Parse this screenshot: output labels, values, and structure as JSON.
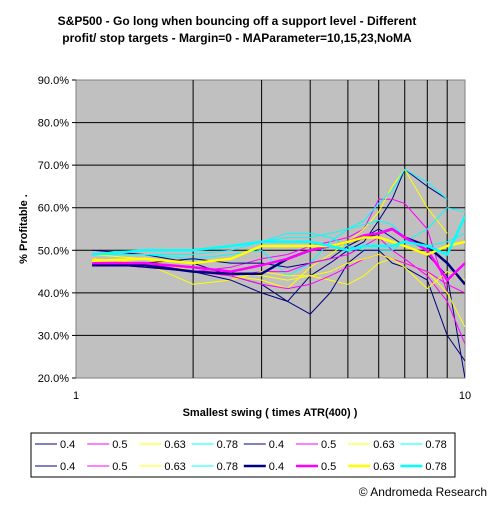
{
  "chart_data": {
    "type": "line",
    "title": [
      "S&P500 - Go long when bouncing off a support level - Different",
      "profit/ stop targets - Margin=0 - MAParameter=10,15,23,NoMA"
    ],
    "xlabel": "Smallest swing ( times ATR(400) )",
    "ylabel": "% Profitable .",
    "x_scale": "log",
    "xlim": [
      1,
      10
    ],
    "x_tick_labels": [
      "1",
      "10"
    ],
    "ylim": [
      20,
      90
    ],
    "y_tick_labels": [
      "20.0%",
      "30.0%",
      "40.0%",
      "50.0%",
      "60.0%",
      "70.0%",
      "80.0%",
      "90.0%"
    ],
    "grid": "vertical",
    "x": [
      1.1,
      1.5,
      2,
      2.5,
      3,
      3.5,
      4,
      4.5,
      5,
      5.5,
      6,
      6.5,
      7,
      8,
      9,
      10
    ],
    "series": [
      {
        "name": "0.4",
        "color": "#000080",
        "width": 1,
        "values": [
          50,
          49,
          47,
          44,
          42,
          38,
          44,
          47,
          50,
          52,
          57,
          62,
          69,
          65,
          62,
          null
        ]
      },
      {
        "name": "0.5",
        "color": "#ff00ff",
        "width": 1,
        "values": [
          48,
          47,
          45,
          46,
          48,
          49,
          51,
          52,
          53,
          55,
          62,
          62,
          61,
          55,
          40,
          null
        ]
      },
      {
        "name": "0.63",
        "color": "#ffff00",
        "width": 1,
        "values": [
          49,
          48,
          45,
          44,
          43,
          41,
          46,
          49,
          52,
          55,
          59,
          65,
          69,
          60,
          54,
          null
        ]
      },
      {
        "name": "0.78",
        "color": "#00ffff",
        "width": 1,
        "values": [
          49,
          49,
          48,
          49,
          50,
          44,
          47,
          52,
          55,
          57,
          61,
          64,
          69,
          66,
          62,
          null
        ]
      },
      {
        "name": "0.4",
        "color": "#000080",
        "width": 1,
        "values": [
          47,
          47,
          48,
          47,
          47,
          46,
          47,
          48,
          51,
          53,
          55,
          53,
          51,
          49,
          44,
          20
        ]
      },
      {
        "name": "0.5",
        "color": "#ff00ff",
        "width": 1,
        "values": [
          47,
          46,
          45,
          44,
          45,
          45,
          47,
          48,
          49,
          51,
          53,
          50,
          48,
          44,
          38,
          28
        ]
      },
      {
        "name": "0.63",
        "color": "#ffff00",
        "width": 1,
        "values": [
          48,
          47,
          42,
          43,
          45,
          44,
          44,
          43,
          42,
          44,
          47,
          48,
          47,
          45,
          40,
          32
        ]
      },
      {
        "name": "0.78",
        "color": "#00ffff",
        "width": 1,
        "values": [
          49,
          49,
          49,
          50,
          52,
          54,
          54,
          53,
          51,
          50,
          50,
          50,
          52,
          55,
          60,
          59
        ]
      },
      {
        "name": "0.4",
        "color": "#000080",
        "width": 1,
        "values": [
          47,
          46,
          45,
          43,
          40,
          38,
          35,
          40,
          47,
          50,
          50,
          47,
          46,
          43,
          30,
          24
        ]
      },
      {
        "name": "0.5",
        "color": "#ff00ff",
        "width": 1,
        "values": [
          48,
          47,
          45,
          44,
          42,
          41,
          42,
          44,
          46,
          48,
          49,
          48,
          47,
          45,
          42,
          40
        ]
      },
      {
        "name": "0.63",
        "color": "#ffff00",
        "width": 1,
        "values": [
          48,
          47,
          46,
          45,
          44,
          43,
          44,
          45,
          47,
          48,
          49,
          48,
          46,
          41,
          45,
          43
        ]
      },
      {
        "name": "0.78",
        "color": "#00ffff",
        "width": 1,
        "values": [
          49,
          50,
          50,
          51,
          52,
          53,
          53,
          54,
          55,
          56,
          57,
          56,
          53,
          51,
          52,
          54
        ]
      },
      {
        "name": "0.4",
        "color": "#000080",
        "width": 2.5,
        "values": [
          46.5,
          46.5,
          45,
          44.5,
          44.5,
          48,
          50,
          51,
          52,
          53,
          54,
          55,
          53,
          51,
          47,
          42
        ]
      },
      {
        "name": "0.5",
        "color": "#ff00ff",
        "width": 2.5,
        "values": [
          47,
          47,
          46,
          45,
          46.5,
          48,
          50,
          51,
          52,
          53.5,
          54,
          55,
          53,
          50,
          43,
          47
        ]
      },
      {
        "name": "0.63",
        "color": "#ffff00",
        "width": 2.5,
        "values": [
          47.5,
          48,
          47,
          48,
          51,
          51,
          51,
          51,
          52,
          53,
          53,
          52,
          51,
          49,
          51,
          52
        ]
      },
      {
        "name": "0.78",
        "color": "#00ffff",
        "width": 2.5,
        "values": [
          49,
          50,
          50,
          51,
          52,
          52,
          52,
          51,
          50,
          51,
          51,
          51,
          52,
          51,
          49,
          58
        ]
      }
    ]
  },
  "copyright": "© Andromeda Research"
}
